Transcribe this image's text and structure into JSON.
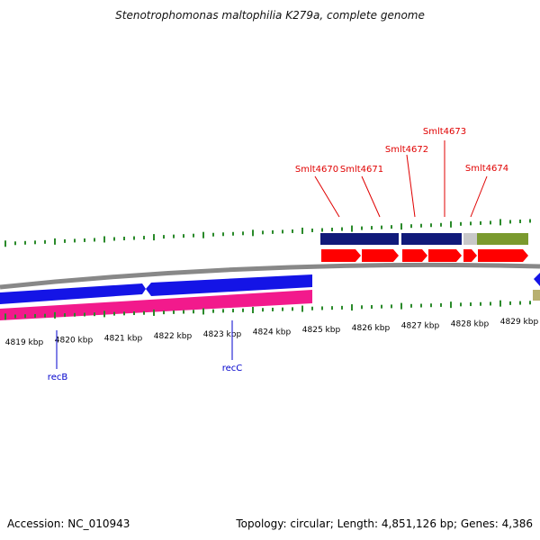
{
  "title": "Stenotrophomonas maltophilia K279a, complete genome",
  "accession": "Accession: NC_010943",
  "summary": "Topology: circular; Length: 4,851,126 bp; Genes: 4,386",
  "colors": {
    "gene_label_red": "#e00000",
    "gene_label_blue": "#0000cc",
    "outer_navy": "#101a7a",
    "outer_olive": "#7a9a2e",
    "outer_grey": "#c8c8c8",
    "forward_red": "#ff0000",
    "inner_blue": "#1414e6",
    "inner_pink": "#f21a8c",
    "backbone": "#888888",
    "tick_green": "#2a8a2a"
  },
  "tick_labels": [
    "4819 kbp",
    "4820 kbp",
    "4821 kbp",
    "4822 kbp",
    "4823 kbp",
    "4824 kbp",
    "4825 kbp",
    "4826 kbp",
    "4827 kbp",
    "4828 kbp",
    "4829 kbp"
  ],
  "gene_labels_top": [
    "Smlt4670",
    "Smlt4671",
    "Smlt4672",
    "Smlt4673",
    "Smlt4674"
  ],
  "gene_labels_bottom": [
    "recB",
    "recC"
  ]
}
